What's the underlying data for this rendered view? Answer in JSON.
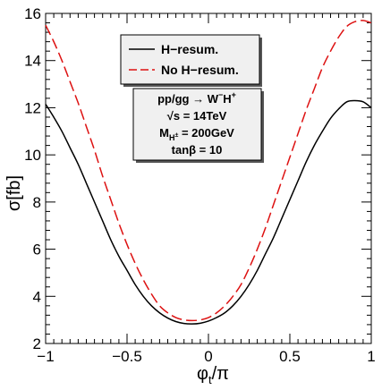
{
  "chart_data": {
    "type": "line",
    "xlabel": "φ",
    "xlabel_sub": "t",
    "xlabel_tail": "/π",
    "ylabel": "σ[fb]",
    "xlim": [
      -1.0,
      1.0
    ],
    "ylim": [
      2,
      16
    ],
    "x_ticks": [
      -1,
      -0.5,
      0,
      0.5,
      1
    ],
    "x_tick_labels": [
      "−1",
      "−0.5",
      "0",
      "0.5",
      "1"
    ],
    "y_ticks": [
      2,
      4,
      6,
      8,
      10,
      12,
      14,
      16
    ],
    "y_tick_labels": [
      "2",
      "4",
      "6",
      "8",
      "10",
      "12",
      "14",
      "16"
    ],
    "legend_position": "top-center",
    "series": [
      {
        "name": "H−resum.",
        "color": "#000000",
        "dash": "solid",
        "x": [
          -1.0,
          -0.95,
          -0.9,
          -0.85,
          -0.8,
          -0.75,
          -0.7,
          -0.65,
          -0.6,
          -0.55,
          -0.5,
          -0.45,
          -0.4,
          -0.35,
          -0.3,
          -0.25,
          -0.2,
          -0.15,
          -0.1,
          -0.05,
          0.0,
          0.05,
          0.1,
          0.15,
          0.2,
          0.25,
          0.3,
          0.35,
          0.4,
          0.45,
          0.5,
          0.55,
          0.6,
          0.65,
          0.7,
          0.75,
          0.8,
          0.85,
          0.9,
          0.95,
          1.0
        ],
        "y": [
          12.15,
          11.6,
          11.0,
          10.3,
          9.6,
          8.8,
          8.0,
          7.2,
          6.4,
          5.7,
          5.1,
          4.5,
          4.0,
          3.6,
          3.3,
          3.08,
          2.93,
          2.85,
          2.83,
          2.86,
          2.95,
          3.1,
          3.3,
          3.6,
          4.0,
          4.5,
          5.1,
          5.8,
          6.5,
          7.3,
          8.1,
          8.9,
          9.7,
          10.4,
          11.0,
          11.55,
          11.95,
          12.25,
          12.3,
          12.25,
          12.0
        ]
      },
      {
        "name": "No H−resum.",
        "color": "#dd1111",
        "dash": "dashed",
        "x": [
          -1.0,
          -0.95,
          -0.9,
          -0.85,
          -0.8,
          -0.75,
          -0.7,
          -0.65,
          -0.6,
          -0.55,
          -0.5,
          -0.45,
          -0.4,
          -0.35,
          -0.3,
          -0.25,
          -0.2,
          -0.15,
          -0.1,
          -0.05,
          0.0,
          0.05,
          0.1,
          0.15,
          0.2,
          0.25,
          0.3,
          0.35,
          0.4,
          0.45,
          0.5,
          0.55,
          0.6,
          0.65,
          0.7,
          0.75,
          0.8,
          0.85,
          0.9,
          0.95,
          1.0
        ],
        "y": [
          15.5,
          14.8,
          14.0,
          13.1,
          12.2,
          11.2,
          10.2,
          9.1,
          8.1,
          7.1,
          6.2,
          5.4,
          4.7,
          4.1,
          3.6,
          3.3,
          3.1,
          3.0,
          2.97,
          3.0,
          3.1,
          3.3,
          3.6,
          4.0,
          4.5,
          5.2,
          6.0,
          6.9,
          7.9,
          8.9,
          9.9,
          10.9,
          11.9,
          12.8,
          13.7,
          14.4,
          15.0,
          15.45,
          15.65,
          15.7,
          15.6
        ]
      }
    ],
    "info_box": {
      "process_main": "pp/gg → W",
      "process_sup1": "−",
      "process_mid": "H",
      "process_sup2": "+",
      "sqrt_symbol": "√",
      "energy": "s = 14TeV",
      "mass_main": "M",
      "mass_sub": "H",
      "mass_subsup": "±",
      "mass_value": " = 200GeV",
      "tanbeta": "tanβ = 10"
    }
  }
}
